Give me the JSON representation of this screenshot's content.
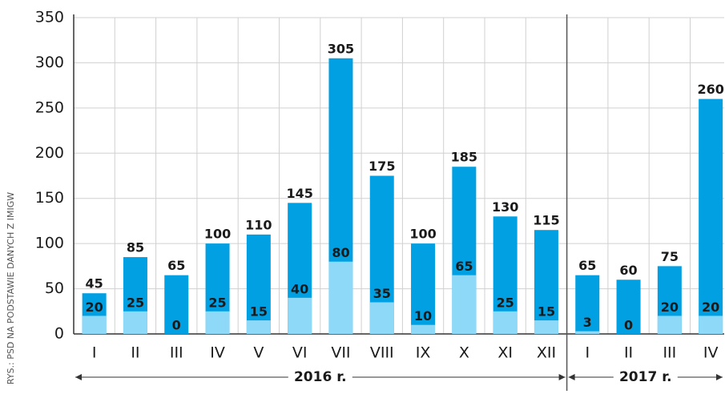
{
  "chart_data": {
    "type": "bar",
    "categories": [
      "I",
      "II",
      "III",
      "IV",
      "V",
      "VI",
      "VII",
      "VIII",
      "IX",
      "X",
      "XI",
      "XII",
      "I",
      "II",
      "III",
      "IV"
    ],
    "series": [
      {
        "color": "#00a0e3",
        "values": [
          45,
          85,
          65,
          100,
          110,
          145,
          305,
          175,
          100,
          185,
          130,
          115,
          65,
          60,
          75,
          260
        ]
      },
      {
        "color": "#8ed8f8",
        "values": [
          20,
          25,
          0,
          25,
          15,
          40,
          80,
          35,
          10,
          65,
          25,
          15,
          3,
          0,
          20,
          20
        ]
      }
    ],
    "groups": [
      "2016 r.",
      "2017 r."
    ],
    "credit": "RYS.: PSD NA PODSTAWIE DANYCH Z IMIGW",
    "ylim": [
      0,
      350
    ],
    "yticks": [
      0,
      50,
      100,
      150,
      200,
      250,
      300,
      350
    ],
    "grid": true
  }
}
